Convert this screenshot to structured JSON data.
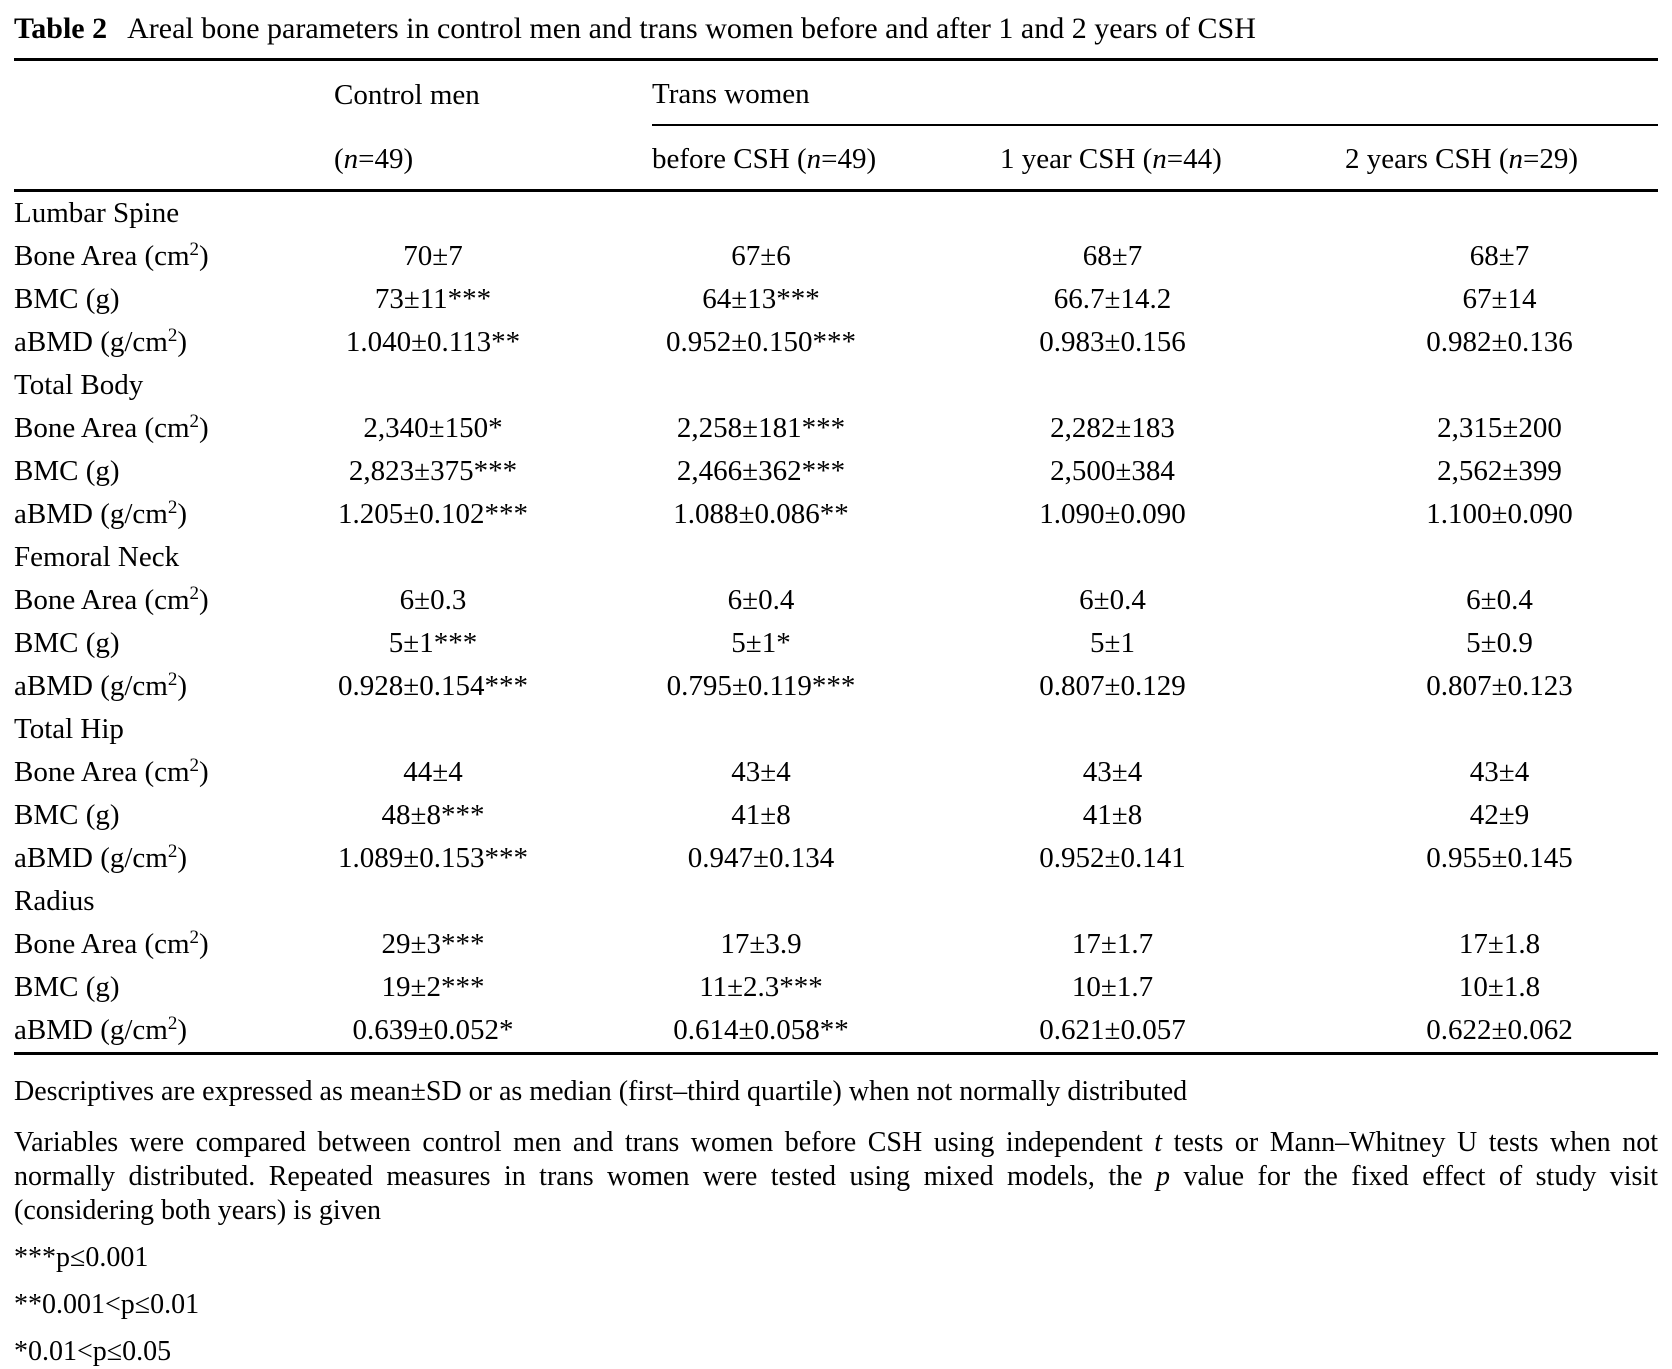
{
  "title": {
    "label": "Table 2",
    "text": "Areal bone parameters in control men and trans women before and after 1 and 2 years of CSH"
  },
  "header": {
    "group_col1": "Control men",
    "group_col2": "Trans women",
    "subheaders": [
      [
        {
          "t": "("
        },
        {
          "t": "n",
          "it": true
        },
        {
          "t": "=49)"
        }
      ],
      [
        {
          "t": "before CSH ("
        },
        {
          "t": "n",
          "it": true
        },
        {
          "t": "=49)"
        }
      ],
      [
        {
          "t": "1 year CSH ("
        },
        {
          "t": "n",
          "it": true
        },
        {
          "t": "=44)"
        }
      ],
      [
        {
          "t": "2 years CSH ("
        },
        {
          "t": "n",
          "it": true
        },
        {
          "t": "=29)"
        }
      ]
    ]
  },
  "rows": [
    {
      "type": "section",
      "label": [
        {
          "t": "Lumbar Spine"
        }
      ]
    },
    {
      "type": "data",
      "label": [
        {
          "t": "Bone Area (cm"
        },
        {
          "t": "2",
          "sup": true
        },
        {
          "t": ")"
        }
      ],
      "values": [
        "70±7",
        "67±6",
        "68±7",
        "68±7"
      ]
    },
    {
      "type": "data",
      "label": [
        {
          "t": "BMC (g)"
        }
      ],
      "values": [
        "73±11***",
        "64±13***",
        "66.7±14.2",
        "67±14"
      ]
    },
    {
      "type": "data",
      "label": [
        {
          "t": "aBMD (g/cm"
        },
        {
          "t": "2",
          "sup": true
        },
        {
          "t": ")"
        }
      ],
      "values": [
        "1.040±0.113**",
        "0.952±0.150***",
        "0.983±0.156",
        "0.982±0.136"
      ]
    },
    {
      "type": "section",
      "label": [
        {
          "t": "Total Body"
        }
      ]
    },
    {
      "type": "data",
      "label": [
        {
          "t": "Bone Area (cm"
        },
        {
          "t": "2",
          "sup": true
        },
        {
          "t": ")"
        }
      ],
      "values": [
        "2,340±150*",
        "2,258±181***",
        "2,282±183",
        "2,315±200"
      ]
    },
    {
      "type": "data",
      "label": [
        {
          "t": "BMC (g)"
        }
      ],
      "values": [
        "2,823±375***",
        "2,466±362***",
        "2,500±384",
        "2,562±399"
      ]
    },
    {
      "type": "data",
      "label": [
        {
          "t": "aBMD (g/cm"
        },
        {
          "t": "2",
          "sup": true
        },
        {
          "t": ")"
        }
      ],
      "values": [
        "1.205±0.102***",
        "1.088±0.086**",
        "1.090±0.090",
        "1.100±0.090"
      ]
    },
    {
      "type": "section",
      "label": [
        {
          "t": "Femoral Neck"
        }
      ]
    },
    {
      "type": "data",
      "label": [
        {
          "t": "Bone Area (cm"
        },
        {
          "t": "2",
          "sup": true
        },
        {
          "t": ")"
        }
      ],
      "values": [
        "6±0.3",
        "6±0.4",
        "6±0.4",
        "6±0.4"
      ]
    },
    {
      "type": "data",
      "label": [
        {
          "t": "BMC (g)"
        }
      ],
      "values": [
        "5±1***",
        "5±1*",
        "5±1",
        "5±0.9"
      ]
    },
    {
      "type": "data",
      "label": [
        {
          "t": "aBMD (g/cm"
        },
        {
          "t": "2",
          "sup": true
        },
        {
          "t": ")"
        }
      ],
      "values": [
        "0.928±0.154***",
        "0.795±0.119***",
        "0.807±0.129",
        "0.807±0.123"
      ]
    },
    {
      "type": "section",
      "label": [
        {
          "t": "Total Hip"
        }
      ]
    },
    {
      "type": "data",
      "label": [
        {
          "t": "Bone Area (cm"
        },
        {
          "t": "2",
          "sup": true
        },
        {
          "t": ")"
        }
      ],
      "values": [
        "44±4",
        "43±4",
        "43±4",
        "43±4"
      ]
    },
    {
      "type": "data",
      "label": [
        {
          "t": "BMC (g)"
        }
      ],
      "values": [
        "48±8***",
        "41±8",
        "41±8",
        "42±9"
      ]
    },
    {
      "type": "data",
      "label": [
        {
          "t": "aBMD (g/cm"
        },
        {
          "t": "2",
          "sup": true
        },
        {
          "t": ")"
        }
      ],
      "values": [
        "1.089±0.153***",
        "0.947±0.134",
        "0.952±0.141",
        "0.955±0.145"
      ]
    },
    {
      "type": "section",
      "label": [
        {
          "t": "Radius"
        }
      ]
    },
    {
      "type": "data",
      "label": [
        {
          "t": "Bone Area (cm"
        },
        {
          "t": "2",
          "sup": true
        },
        {
          "t": ")"
        }
      ],
      "values": [
        "29±3***",
        "17±3.9",
        "17±1.7",
        "17±1.8"
      ]
    },
    {
      "type": "data",
      "label": [
        {
          "t": "BMC (g)"
        }
      ],
      "values": [
        "19±2***",
        "11±2.3***",
        "10±1.7",
        "10±1.8"
      ]
    },
    {
      "type": "data",
      "label": [
        {
          "t": "aBMD (g/cm"
        },
        {
          "t": "2",
          "sup": true
        },
        {
          "t": ")"
        }
      ],
      "values": [
        "0.639±0.052*",
        "0.614±0.058**",
        "0.621±0.057",
        "0.622±0.062"
      ]
    }
  ],
  "footnotes": [
    [
      {
        "t": "Descriptives are expressed as mean±SD or as median (first–third quartile) when not normally distributed"
      }
    ],
    [
      {
        "t": "Variables were compared between control men and trans women before CSH using independent "
      },
      {
        "t": "t",
        "it": true
      },
      {
        "t": " tests or Mann–Whitney U tests when not normally distributed. Repeated measures in trans women were tested using mixed models, the "
      },
      {
        "t": "p",
        "it": true
      },
      {
        "t": " value for the fixed effect of study visit (considering both years) is given"
      }
    ],
    [
      {
        "t": "***p≤0.001"
      }
    ],
    [
      {
        "t": "**0.001<p≤0.01"
      }
    ],
    [
      {
        "t": "*0.01<p≤0.05"
      }
    ]
  ]
}
